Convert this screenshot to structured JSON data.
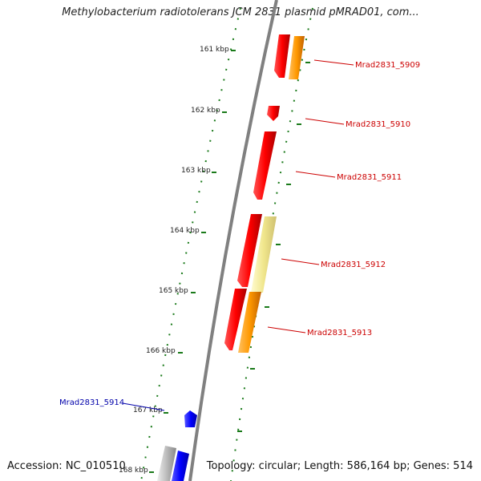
{
  "title": "Methylobacterium radiotolerans JCM 2831 plasmid pMRAD01, com...",
  "accession": "Accession: NC_010510",
  "topology": "Topology: circular; Length: 586,164 bp; Genes: 514",
  "kbp_labels": [
    "161 kbp",
    "162 kbp",
    "163 kbp",
    "164 kbp",
    "165 kbp",
    "166 kbp",
    "167 kbp",
    "168 kbp"
  ],
  "gene_labels": {
    "g5909": "Mrad2831_5909",
    "g5910": "Mrad2831_5910",
    "g5911": "Mrad2831_5911",
    "g5912": "Mrad2831_5912",
    "g5913": "Mrad2831_5913",
    "g5914": "Mrad2831_5914"
  },
  "colors": {
    "red": "#ff0000",
    "orange": "#ff9900",
    "yellow": "#f0e68c",
    "blue": "#0000ff",
    "gray": "#bbbbbb",
    "backbone": "#808080",
    "tick": "#1a7a1a",
    "label_red": "#cc0000",
    "label_blue": "#0000aa"
  }
}
